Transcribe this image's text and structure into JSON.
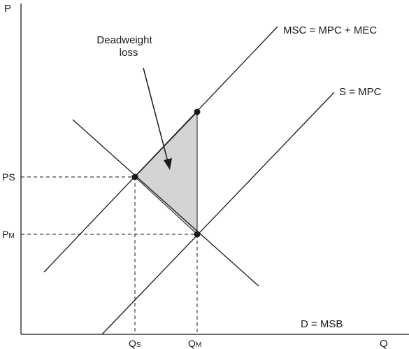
{
  "axes": {
    "y_label": "P",
    "x_label": "Q"
  },
  "curves": {
    "msc_label": "MSC = MPC + MEC",
    "supply_label": "S = MPC",
    "demand_label": "D = MSB"
  },
  "annotation": {
    "line1": "Deadweight",
    "line2": "loss"
  },
  "price_ticks": {
    "ps_main": "P",
    "ps_sub": "S",
    "pm_main": "P",
    "pm_sub": "M"
  },
  "quantity_ticks": {
    "qs_main": "Q",
    "qs_sub": "S",
    "qm_main": "Q",
    "qm_sub": "M"
  },
  "colors": {
    "deadweight_fill": "#d4d4d4",
    "ink": "#1a1a1a"
  }
}
